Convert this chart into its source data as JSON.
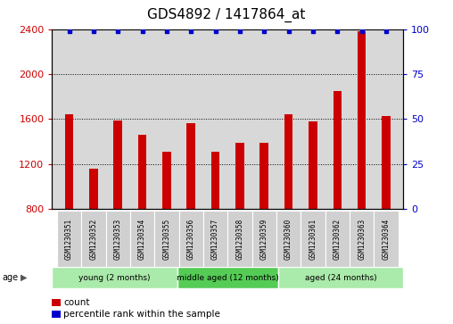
{
  "title": "GDS4892 / 1417864_at",
  "samples": [
    "GSM1230351",
    "GSM1230352",
    "GSM1230353",
    "GSM1230354",
    "GSM1230355",
    "GSM1230356",
    "GSM1230357",
    "GSM1230358",
    "GSM1230359",
    "GSM1230360",
    "GSM1230361",
    "GSM1230362",
    "GSM1230363",
    "GSM1230364"
  ],
  "counts": [
    1640,
    1155,
    1590,
    1460,
    1310,
    1560,
    1310,
    1390,
    1390,
    1640,
    1580,
    1850,
    2380,
    1630
  ],
  "percentiles": [
    99,
    99,
    99,
    99,
    99,
    99,
    99,
    99,
    99,
    99,
    99,
    99,
    99,
    99
  ],
  "bar_color": "#cc0000",
  "dot_color": "#0000cc",
  "ylim_left": [
    800,
    2400
  ],
  "ylim_right": [
    0,
    100
  ],
  "yticks_left": [
    800,
    1200,
    1600,
    2000,
    2400
  ],
  "yticks_right": [
    0,
    25,
    50,
    75,
    100
  ],
  "groups": [
    {
      "label": "young (2 months)",
      "start": 0,
      "end": 5,
      "color": "#aaeaaa"
    },
    {
      "label": "middle aged (12 months)",
      "start": 5,
      "end": 9,
      "color": "#55cc55"
    },
    {
      "label": "aged (24 months)",
      "start": 9,
      "end": 14,
      "color": "#aaeaaa"
    }
  ],
  "age_label": "age",
  "legend_count_label": "count",
  "legend_percentile_label": "percentile rank within the sample",
  "title_fontsize": 11,
  "tick_fontsize": 8,
  "background_color": "#ffffff",
  "plot_bg_color": "#d8d8d8",
  "label_box_color": "#d0d0d0",
  "bar_bottom": 800
}
